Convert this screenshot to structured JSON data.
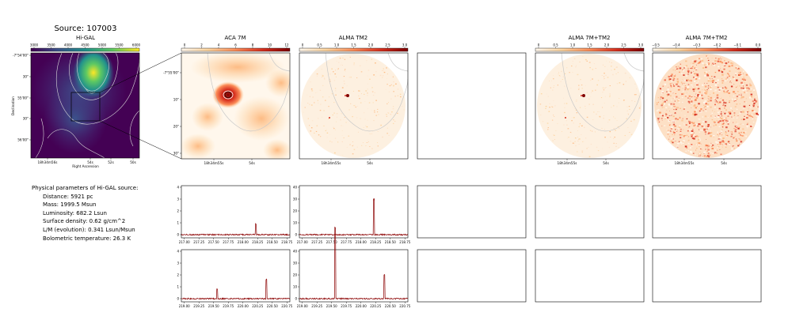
{
  "figure": {
    "title": "Source: 107003"
  },
  "params": {
    "header": "Physical parameters of Hi-GAL source:",
    "lines": [
      "Distance: 5921 pc",
      "Mass: 1999.5 Msun",
      "Luminosity: 682.2 Lsun",
      "Surface density: 0.62 g/cm^2",
      "L/M (evolution): 0.341 Lsun/Msun",
      "Bolometric temperature: 26.3 K"
    ]
  },
  "colors": {
    "viridis": [
      "#440154",
      "#3b528b",
      "#21918c",
      "#5ec962",
      "#fde725"
    ],
    "orrd": [
      "#fff7ec",
      "#fdd49e",
      "#fc8d59",
      "#d7301f",
      "#7f0000"
    ],
    "spectrum_line": "#8b0000",
    "contour": "#d9d9d9"
  },
  "chart_data": [
    {
      "type": "heatmap",
      "panel": "higal",
      "title": "Hi-GAL",
      "colorbar_ticks": [
        "3000",
        "3500",
        "4000",
        "4500",
        "5000",
        "5500",
        "6000"
      ],
      "y_ticks": [
        "-7°54'00\"",
        "30\"",
        "55'00\"",
        "30\"",
        "56'00\""
      ],
      "x_ticks": [
        "18h34m56s",
        "54s",
        "52s",
        "50s"
      ],
      "xlabel": "Right Ascension",
      "ylabel": "Declination"
    },
    {
      "type": "heatmap",
      "panel": "aca7m",
      "title": "ACA 7M",
      "colorbar_ticks": [
        "0",
        "2",
        "4",
        "6",
        "8",
        "10",
        "12"
      ],
      "y_ticks": [
        "-7°55'00\"",
        "10\"",
        "20\"",
        "30\""
      ],
      "x_ticks": [
        "18h34m55s",
        "54s"
      ]
    },
    {
      "type": "heatmap",
      "panel": "almatm2",
      "title": "ALMA TM2",
      "colorbar_ticks": [
        "0",
        "0.5",
        "1.0",
        "1.5",
        "2.0",
        "2.5",
        "3.0"
      ],
      "x_ticks": [
        "18h34m55s",
        "54s"
      ]
    },
    {
      "type": "heatmap",
      "panel": "alma7mtm2",
      "title": "ALMA 7M+TM2",
      "colorbar_ticks": [
        "0",
        "0.5",
        "1.0",
        "1.5",
        "2.0",
        "2.5",
        "3.0"
      ],
      "x_ticks": [
        "18h34m55s",
        "54s"
      ]
    },
    {
      "type": "heatmap",
      "panel": "alma7mtm2_res",
      "title": "ALMA 7M+TM2",
      "colorbar_ticks": [
        "−0.5",
        "−0.4",
        "−0.3",
        "−0.2",
        "−0.1",
        "0.0"
      ],
      "x_ticks": [
        "18h34m55s",
        "54s"
      ]
    },
    {
      "type": "line",
      "panel": "spec_aca_1",
      "xlim": [
        216.95,
        218.8
      ],
      "ylim": [
        -2,
        42
      ],
      "y_ticks": [
        "0",
        "1",
        "2",
        "3",
        "4"
      ],
      "x_ticks": [
        "217.00",
        "217.25",
        "217.50",
        "217.75",
        "218.00",
        "218.25",
        "218.50",
        "218.75"
      ],
      "baseline": 0.3,
      "peaks": [
        {
          "x": 218.22,
          "y": 0.9
        }
      ]
    },
    {
      "type": "line",
      "panel": "spec_tm2_1",
      "xlim": [
        216.95,
        218.8
      ],
      "ylim": [
        -2,
        42
      ],
      "y_ticks": [
        "0",
        "10",
        "20",
        "30",
        "40"
      ],
      "x_ticks": [
        "217.00",
        "217.25",
        "217.50",
        "217.75",
        "218.00",
        "218.25",
        "218.50",
        "218.75"
      ],
      "baseline": 0.2,
      "peaks": [
        {
          "x": 218.22,
          "y": 3
        }
      ]
    },
    {
      "type": "line",
      "panel": "spec_aca_2",
      "xlim": [
        218.95,
        220.8
      ],
      "ylim": [
        -2,
        42
      ],
      "y_ticks": [
        "0",
        "1",
        "2",
        "3",
        "4"
      ],
      "x_ticks": [
        "219.00",
        "219.25",
        "219.50",
        "219.75",
        "220.00",
        "220.25",
        "220.50",
        "220.75"
      ],
      "baseline": 0.3,
      "peaks": [
        {
          "x": 219.56,
          "y": 0.8
        },
        {
          "x": 220.4,
          "y": 1.6
        }
      ]
    },
    {
      "type": "line",
      "panel": "spec_tm2_2",
      "xlim": [
        218.95,
        220.8
      ],
      "ylim": [
        -2,
        42
      ],
      "y_ticks": [
        "0",
        "10",
        "20",
        "30",
        "40"
      ],
      "x_ticks": [
        "219.00",
        "219.25",
        "219.50",
        "219.75",
        "220.00",
        "220.25",
        "220.50",
        "220.75"
      ],
      "baseline": 0.2,
      "peaks": [
        {
          "x": 219.56,
          "y": 6
        },
        {
          "x": 220.4,
          "y": 2
        }
      ]
    }
  ]
}
